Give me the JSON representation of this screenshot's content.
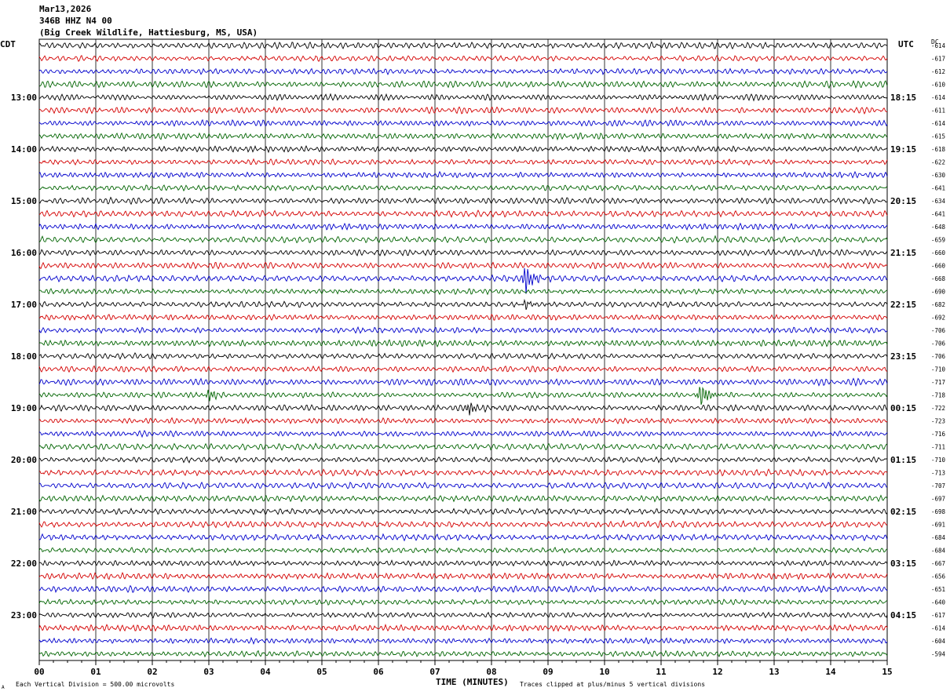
{
  "header": {
    "date": "Mar13,2026",
    "station": "346B HHZ N4 00",
    "location": "(Big Creek Wildlife, Hattiesburg, MS, USA)"
  },
  "labels": {
    "left_zone": "CDT",
    "right_zone": "UTC",
    "dc": "DC",
    "x_axis": "TIME (MINUTES)",
    "scale_note": "Each Vertical Division =  500.00 microvolts",
    "clip_note": "Traces clipped at plus/minus 5 vertical divisions",
    "corner_mark": "A"
  },
  "colors": {
    "trace_cycle": [
      "#000000",
      "#d40000",
      "#0000cc",
      "#006400"
    ],
    "grid": "#000000"
  },
  "chart_data": {
    "type": "line",
    "title": "",
    "xlabel": "TIME (MINUTES)",
    "x_ticks": [
      "00",
      "01",
      "02",
      "03",
      "04",
      "05",
      "06",
      "07",
      "08",
      "09",
      "10",
      "11",
      "12",
      "13",
      "14",
      "15"
    ],
    "xlim": [
      0,
      15
    ],
    "left_hour_labels": [
      {
        "row": 4,
        "label": "13:00"
      },
      {
        "row": 8,
        "label": "14:00"
      },
      {
        "row": 12,
        "label": "15:00"
      },
      {
        "row": 16,
        "label": "16:00"
      },
      {
        "row": 20,
        "label": "17:00"
      },
      {
        "row": 24,
        "label": "18:00"
      },
      {
        "row": 28,
        "label": "19:00"
      },
      {
        "row": 32,
        "label": "20:00"
      },
      {
        "row": 36,
        "label": "21:00"
      },
      {
        "row": 40,
        "label": "22:00"
      },
      {
        "row": 44,
        "label": "23:00"
      }
    ],
    "right_hour_labels": [
      {
        "row": 4,
        "label": "18:15"
      },
      {
        "row": 8,
        "label": "19:15"
      },
      {
        "row": 12,
        "label": "20:15"
      },
      {
        "row": 16,
        "label": "21:15"
      },
      {
        "row": 20,
        "label": "22:15"
      },
      {
        "row": 24,
        "label": "23:15"
      },
      {
        "row": 28,
        "label": "00:15"
      },
      {
        "row": 32,
        "label": "01:15"
      },
      {
        "row": 36,
        "label": "02:15"
      },
      {
        "row": 40,
        "label": "03:15"
      },
      {
        "row": 44,
        "label": "04:15"
      }
    ],
    "dc_offsets": [
      "-614",
      "-617",
      "-612",
      "-610",
      "-614",
      "-611",
      "-614",
      "-615",
      "-618",
      "-622",
      "-630",
      "-641",
      "-634",
      "-641",
      "-648",
      "-659",
      "-660",
      "-660",
      "-668",
      "-690",
      "-682",
      "-692",
      "-706",
      "-706",
      "-706",
      "-710",
      "-717",
      "-718",
      "-722",
      "-723",
      "-716",
      "-711",
      "-710",
      "-713",
      "-707",
      "-697",
      "-698",
      "-691",
      "-684",
      "-684",
      "-667",
      "-656",
      "-651",
      "-640",
      "-617",
      "-614",
      "-604",
      "-594"
    ],
    "events": [
      {
        "row": 18,
        "minute": 8.6,
        "amplitude": 2.4,
        "description_color": "blue"
      },
      {
        "row": 27,
        "minute": 11.7,
        "amplitude": 2.0
      },
      {
        "row": 27,
        "minute": 3.0,
        "amplitude": 0.9
      },
      {
        "row": 28,
        "minute": 7.6,
        "amplitude": 1.2
      },
      {
        "row": 20,
        "minute": 8.6,
        "amplitude": 0.7
      }
    ]
  }
}
